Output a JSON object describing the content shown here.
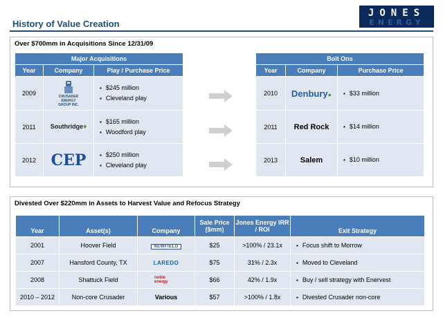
{
  "header": {
    "title": "History of Value Creation",
    "logo_top": "JONES",
    "logo_bottom": "ENERGY"
  },
  "acquisitions_panel": {
    "heading": "Over $700mm in Acquisitions Since 12/31/09",
    "major": {
      "banner": "Major Acquisitions",
      "columns": [
        "Year",
        "Company",
        "Play / Purchase Price"
      ],
      "rows": [
        {
          "year": "2009",
          "company_logo": [
            "CRUSADER",
            "ENERGY",
            "GROUP INC."
          ],
          "items": [
            "$245 million",
            "Cleveland play"
          ]
        },
        {
          "year": "2011",
          "company_logo": "Southridge",
          "items": [
            "$165 million",
            "Woodford play"
          ]
        },
        {
          "year": "2012",
          "company_logo": "CEP",
          "items": [
            "$250 million",
            "Cleveland play"
          ]
        }
      ]
    },
    "bolt_ons": {
      "banner": "Bolt Ons",
      "columns": [
        "Year",
        "Company",
        "Purchase Price"
      ],
      "rows": [
        {
          "year": "2010",
          "company": "Denbury",
          "price": "$33 million"
        },
        {
          "year": "2011",
          "company": "Red Rock",
          "price": "$14 million"
        },
        {
          "year": "2013",
          "company": "Salem",
          "price": "$10 million"
        }
      ]
    }
  },
  "divest_panel": {
    "heading": "Divested Over $220mm in Assets to Harvest Value and Refocus Strategy",
    "columns": [
      "Year",
      "Asset(s)",
      "Company",
      "Sale Price ($mm)",
      "Jones Energy IRR / ROI",
      "Exit Strategy"
    ],
    "rows": [
      {
        "year": "2001",
        "asset": "Hoover Field",
        "company": "NEWFIELD",
        "price": "$25",
        "irr": ">100% / 23.1x",
        "exit": "Focus shift to Morrow"
      },
      {
        "year": "2007",
        "asset": "Hansford County, TX",
        "company": "LAREDO",
        "price": "$75",
        "irr": "31% / 2.3x",
        "exit": "Moved to Cleveland"
      },
      {
        "year": "2008",
        "asset": "Shattuck Field",
        "company": "noble energy",
        "price": "$66",
        "irr": "42% / 1.9x",
        "exit": "Buy / sell strategy with Enervest"
      },
      {
        "year": "2010 – 2012",
        "asset": "Non-core Crusader",
        "company": "Various",
        "price": "$57",
        "irr": ">100% / 1.8x",
        "exit": "Divested Crusader non-core"
      }
    ]
  },
  "colors": {
    "brand_blue": "#1f4e79",
    "header_fill": "#4a7ebb",
    "cell_fill": "#e1e7f1",
    "arrow_gray": "#d0d0d0"
  }
}
